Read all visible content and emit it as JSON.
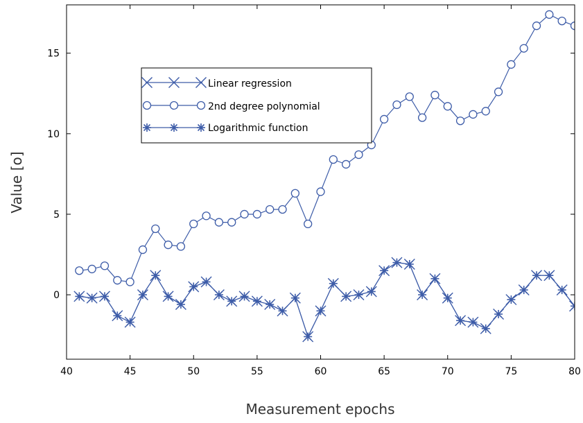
{
  "chart_data": {
    "type": "line",
    "xlabel": "Measurement epochs",
    "ylabel": "Value [o]",
    "xlim": [
      40,
      80
    ],
    "ylim": [
      -4,
      18
    ],
    "xticks": [
      40,
      45,
      50,
      55,
      60,
      65,
      70,
      75,
      80
    ],
    "yticks": [
      0,
      5,
      10,
      15
    ],
    "grid": false,
    "legend_position": "upper-left-inside",
    "x": [
      41,
      42,
      43,
      44,
      45,
      46,
      47,
      48,
      49,
      50,
      51,
      52,
      53,
      54,
      55,
      56,
      57,
      58,
      59,
      60,
      61,
      62,
      63,
      64,
      65,
      66,
      67,
      68,
      69,
      70,
      71,
      72,
      73,
      74,
      75,
      76,
      77,
      78,
      79,
      80
    ],
    "series": [
      {
        "name": "Linear regression",
        "marker": "x",
        "color": "#3d5ca8",
        "values": [
          -0.1,
          -0.2,
          -0.1,
          -1.3,
          -1.7,
          0.0,
          1.2,
          -0.1,
          -0.6,
          0.5,
          0.8,
          0.0,
          -0.4,
          -0.1,
          -0.4,
          -0.6,
          -1.0,
          -0.2,
          -2.6,
          -1.0,
          0.7,
          -0.1,
          0.0,
          0.2,
          1.5,
          2.0,
          1.9,
          0.0,
          1.0,
          -0.2,
          -1.6,
          -1.7,
          -2.1,
          -1.2,
          -0.3,
          0.3,
          1.2,
          1.2,
          0.3,
          -0.7
        ]
      },
      {
        "name": "2nd degree polynomial",
        "marker": "circle",
        "color": "#3d5ca8",
        "values": [
          1.5,
          1.6,
          1.8,
          0.9,
          0.8,
          2.8,
          4.1,
          3.1,
          3.0,
          4.4,
          4.9,
          4.5,
          4.5,
          5.0,
          5.0,
          5.3,
          5.3,
          6.3,
          4.4,
          6.4,
          8.4,
          8.1,
          8.7,
          9.3,
          10.9,
          11.8,
          12.3,
          11.0,
          12.4,
          11.7,
          10.8,
          11.2,
          11.4,
          12.6,
          14.3,
          15.3,
          16.7,
          17.4,
          17.0,
          16.7
        ]
      },
      {
        "name": "Logarithmic function",
        "marker": "asterisk",
        "color": "#3d5ca8",
        "values": [
          -0.1,
          -0.2,
          -0.1,
          -1.3,
          -1.7,
          0.0,
          1.2,
          -0.1,
          -0.6,
          0.5,
          0.8,
          0.0,
          -0.4,
          -0.1,
          -0.4,
          -0.6,
          -1.0,
          -0.2,
          -2.6,
          -1.0,
          0.7,
          -0.1,
          0.0,
          0.2,
          1.5,
          2.0,
          1.9,
          0.0,
          1.0,
          -0.2,
          -1.6,
          -1.7,
          -2.1,
          -1.2,
          -0.3,
          0.3,
          1.2,
          1.2,
          0.3,
          -0.7
        ]
      }
    ]
  }
}
